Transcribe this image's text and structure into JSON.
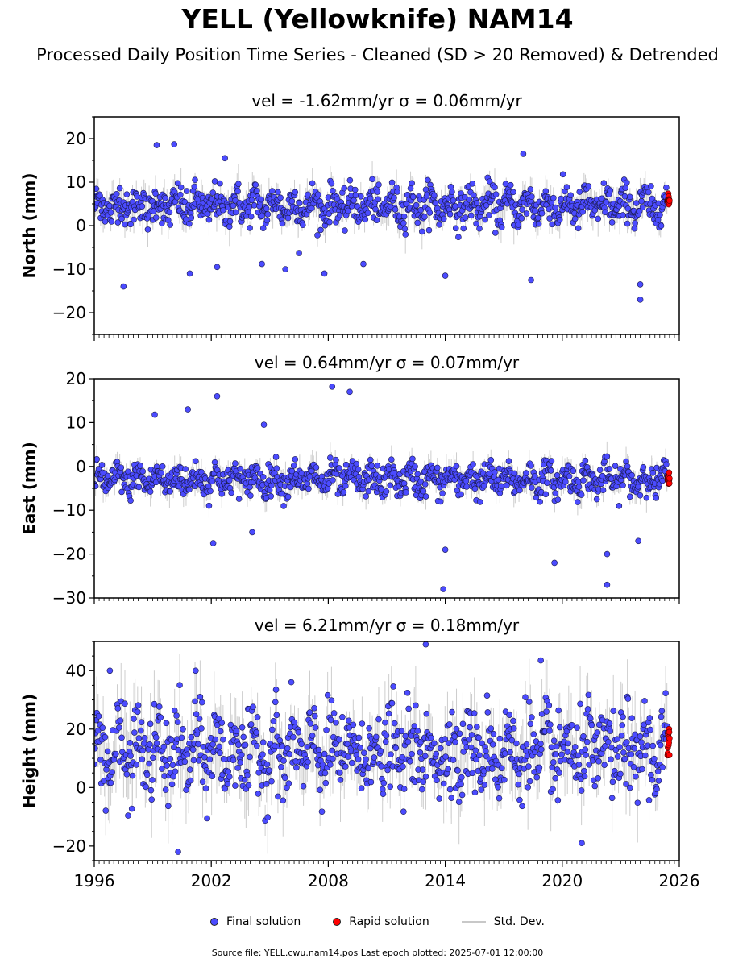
{
  "figure": {
    "title": "YELL (Yellowknife) NAM14",
    "subtitle": "Processed Daily Position Time Series - Cleaned (SD > 20 Removed) & Detrended",
    "source_note": "Source file: YELL.cwu.nam14.pos  Last epoch plotted: 2025-07-01 12:00:00"
  },
  "legend": {
    "final_label": "Final solution",
    "rapid_label": "Rapid solution",
    "std_label": "Std. Dev."
  },
  "colors": {
    "final": "#4b4bff",
    "rapid": "#ff0000",
    "std": "#c8c8c8"
  },
  "chart_data": [
    {
      "type": "scatter",
      "panel": "north",
      "title": "vel = -1.62mm/yr   σ = 0.06mm/yr",
      "ylabel": "North (mm)",
      "xlim": [
        1996,
        2026
      ],
      "ylim": [
        -25,
        25
      ],
      "yticks": [
        -20,
        -10,
        0,
        10,
        20
      ],
      "xticks": [
        1996,
        2002,
        2008,
        2014,
        2020,
        2026
      ],
      "xtick_labels_shown": false,
      "series": [
        {
          "name": "Final solution",
          "x_range": [
            1996.0,
            2025.4
          ],
          "approx_center": 4.5,
          "approx_spread": 3.0
        },
        {
          "name": "Rapid solution",
          "x_range": [
            2025.4,
            2025.5
          ],
          "approx_center": 5.5,
          "approx_spread": 0.8
        }
      ],
      "outliers": [
        [
          1997.5,
          -14
        ],
        [
          1999.2,
          18.5
        ],
        [
          2000.1,
          18.7
        ],
        [
          2000.9,
          -11
        ],
        [
          2002.3,
          -9.5
        ],
        [
          2002.7,
          15.5
        ],
        [
          2004.6,
          -8.8
        ],
        [
          2005.8,
          -10
        ],
        [
          2006.5,
          -6.3
        ],
        [
          2007.8,
          -11
        ],
        [
          2009.8,
          -8.8
        ],
        [
          2014.0,
          -11.5
        ],
        [
          2018.0,
          16.5
        ],
        [
          2018.4,
          -12.5
        ],
        [
          2024.0,
          -17
        ],
        [
          2024.0,
          -13.5
        ]
      ]
    },
    {
      "type": "scatter",
      "panel": "east",
      "title": "vel = 0.64mm/yr   σ = 0.07mm/yr",
      "ylabel": "East (mm)",
      "xlim": [
        1996,
        2026
      ],
      "ylim": [
        -30,
        20
      ],
      "yticks": [
        -30,
        -20,
        -10,
        0,
        10,
        20
      ],
      "xticks": [
        1996,
        2002,
        2008,
        2014,
        2020,
        2026
      ],
      "xtick_labels_shown": false,
      "series": [
        {
          "name": "Final solution",
          "x_range": [
            1996.0,
            2025.4
          ],
          "approx_center": -3.0,
          "approx_spread": 2.5
        },
        {
          "name": "Rapid solution",
          "x_range": [
            2025.4,
            2025.5
          ],
          "approx_center": -3.0,
          "approx_spread": 0.8
        }
      ],
      "outliers": [
        [
          1999.1,
          11.8
        ],
        [
          2000.8,
          13
        ],
        [
          2002.3,
          16
        ],
        [
          2002.1,
          -17.5
        ],
        [
          2004.7,
          9.5
        ],
        [
          2004.1,
          -15
        ],
        [
          2008.2,
          18.2
        ],
        [
          2009.1,
          17
        ],
        [
          2014.0,
          -19
        ],
        [
          2013.9,
          -28
        ],
        [
          2019.6,
          -22
        ],
        [
          2022.3,
          -27
        ],
        [
          2022.3,
          -20
        ],
        [
          2023.9,
          -17
        ]
      ]
    },
    {
      "type": "scatter",
      "panel": "height",
      "title": "vel = 6.21mm/yr   σ = 0.18mm/yr",
      "ylabel": "Height (mm)",
      "xlim": [
        1996,
        2026
      ],
      "ylim": [
        -25,
        50
      ],
      "yticks": [
        -20,
        0,
        20,
        40
      ],
      "xticks": [
        1996,
        2002,
        2008,
        2014,
        2020,
        2026
      ],
      "xtick_labels": [
        "1996",
        "2002",
        "2008",
        "2014",
        "2020",
        "2026"
      ],
      "series": [
        {
          "name": "Final solution",
          "x_range": [
            1996.0,
            2025.4
          ],
          "approx_center": 12.0,
          "approx_spread": 10.0
        },
        {
          "name": "Rapid solution",
          "x_range": [
            2025.4,
            2025.5
          ],
          "approx_center": 15.0,
          "approx_spread": 4.0
        }
      ],
      "outliers": [
        [
          1996.8,
          40
        ],
        [
          2001.2,
          40
        ],
        [
          2000.3,
          -22
        ],
        [
          2013.0,
          49
        ],
        [
          2018.9,
          43.5
        ],
        [
          2021.0,
          -19
        ]
      ]
    }
  ]
}
